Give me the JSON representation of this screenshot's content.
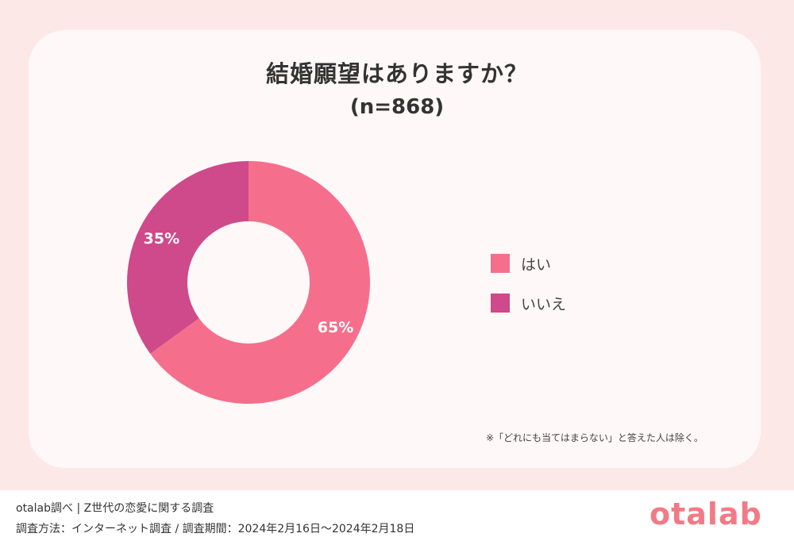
{
  "chart_data": {
    "type": "pie",
    "title": "結婚願望はありますか？",
    "subtitle": "(n=868)",
    "categories": [
      "はい",
      "いいえ"
    ],
    "values": [
      65,
      35
    ],
    "labels": [
      "65%",
      "35%"
    ],
    "colors": [
      "#f56f8c",
      "#ce4a8a"
    ],
    "donut": true,
    "legend_position": "right"
  },
  "note": "※「どれにも当てはまらない」と答えた人は除く。",
  "footer": {
    "line1": "otalab調べ | Z世代の恋愛に関する調査",
    "line2": "調査方法：インターネット調査 / 調査期間：2024年2月16日〜2024年2月18日",
    "logo": "otalab"
  },
  "colors": {
    "background": "#fde8e8",
    "card": "#fff8f8",
    "logo": "#f27a86"
  }
}
